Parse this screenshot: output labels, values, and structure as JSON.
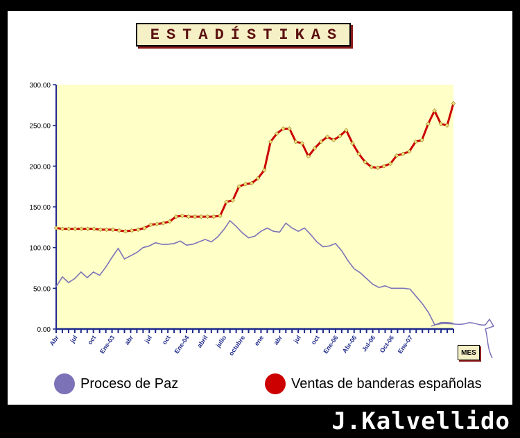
{
  "title": "ESTADÍSTIKAS",
  "signature": "J.Kalvellido",
  "x_unit_label": "MES",
  "colors": {
    "plot_bg": "#ffffc8",
    "axis": "#1f2a8a",
    "paz": "#7b72b8",
    "banderas_line": "#cc0000",
    "banderas_marker": "#f0e080"
  },
  "chart_data": {
    "type": "line",
    "title": "ESTADÍSTIKAS",
    "xlabel": "MES",
    "ylabel": "",
    "ylim": [
      0,
      300
    ],
    "grid": false,
    "y_ticks": [
      "0.00",
      "50.00",
      "100.00",
      "150.00",
      "200.00",
      "250.00",
      "300.00"
    ],
    "x_tick_labels": [
      {
        "i": 0,
        "label": "Abr"
      },
      {
        "i": 3,
        "label": "jul"
      },
      {
        "i": 6,
        "label": "oct"
      },
      {
        "i": 9,
        "label": "Ene-03"
      },
      {
        "i": 12,
        "label": "abr"
      },
      {
        "i": 15,
        "label": "jul"
      },
      {
        "i": 18,
        "label": "oct"
      },
      {
        "i": 21,
        "label": "Ene-04"
      },
      {
        "i": 24,
        "label": "abril"
      },
      {
        "i": 27,
        "label": "julio"
      },
      {
        "i": 30,
        "label": "octubre"
      },
      {
        "i": 33,
        "label": "ene"
      },
      {
        "i": 36,
        "label": "abr"
      },
      {
        "i": 39,
        "label": "jul"
      },
      {
        "i": 42,
        "label": "oct"
      },
      {
        "i": 45,
        "label": "Ene-06"
      },
      {
        "i": 48,
        "label": "Abr-06"
      },
      {
        "i": 51,
        "label": "Jul-06"
      },
      {
        "i": 54,
        "label": "Oct-06"
      },
      {
        "i": 57,
        "label": "Ene-07"
      }
    ],
    "series": [
      {
        "name": "Proceso de Paz",
        "values": [
          52,
          64,
          57,
          62,
          70,
          63,
          70,
          66,
          76,
          88,
          99,
          86,
          90,
          94,
          100,
          102,
          106,
          104,
          104,
          105,
          108,
          103,
          104,
          107,
          110,
          107,
          113,
          122,
          133,
          126,
          118,
          112,
          114,
          120,
          124,
          120,
          119,
          130,
          124,
          120,
          124,
          116,
          107,
          101,
          102,
          105,
          96,
          84,
          74,
          69,
          62,
          55,
          51,
          53,
          50,
          50,
          50,
          49,
          40,
          31,
          20,
          5,
          8,
          8,
          7
        ]
      },
      {
        "name": "Ventas de banderas españolas",
        "values": [
          124,
          123,
          123,
          123,
          123,
          123,
          123,
          122,
          122,
          122,
          121,
          120,
          121,
          122,
          124,
          128,
          129,
          130,
          132,
          138,
          139,
          138,
          138,
          138,
          138,
          138,
          139,
          156,
          158,
          175,
          178,
          179,
          185,
          195,
          230,
          240,
          246,
          246,
          230,
          228,
          212,
          222,
          230,
          236,
          232,
          237,
          244,
          228,
          215,
          205,
          199,
          198,
          200,
          203,
          213,
          215,
          218,
          230,
          232,
          252,
          268,
          252,
          250,
          277
        ]
      }
    ],
    "legend": {
      "placement": "bottom",
      "items": [
        "Proceso de Paz",
        "Ventas de banderas españolas"
      ]
    }
  }
}
